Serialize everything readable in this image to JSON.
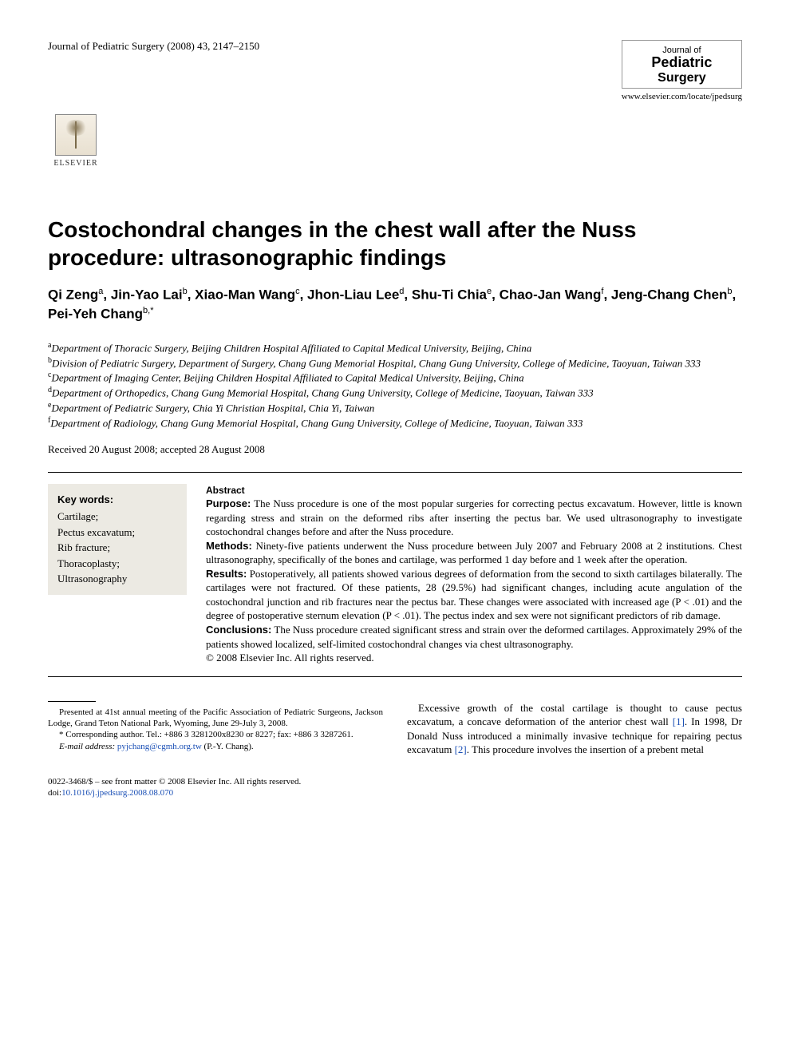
{
  "header": {
    "running_head": "Journal of Pediatric Surgery (2008) 43, 2147–2150",
    "journal_block": {
      "line1": "Journal of",
      "line2": "Pediatric",
      "line3": "Surgery"
    },
    "publisher": "ELSEVIER",
    "journal_url": "www.elsevier.com/locate/jpedsurg"
  },
  "title": "Costochondral changes in the chest wall after the Nuss procedure: ultrasonographic findings",
  "authors_html": "Qi Zeng<sup>a</sup>, Jin-Yao Lai<sup>b</sup>, Xiao-Man Wang<sup>c</sup>, Jhon-Liau Lee<sup>d</sup>, Shu-Ti Chia<sup>e</sup>, Chao-Jan Wang<sup>f</sup>, Jeng-Chang Chen<sup>b</sup>, Pei-Yeh Chang<sup>b,*</sup>",
  "affiliations": [
    {
      "sup": "a",
      "text": "Department of Thoracic Surgery, Beijing Children Hospital Affiliated to Capital Medical University, Beijing, China"
    },
    {
      "sup": "b",
      "text": "Division of Pediatric Surgery, Department of Surgery, Chang Gung Memorial Hospital, Chang Gung University, College of Medicine, Taoyuan, Taiwan 333"
    },
    {
      "sup": "c",
      "text": "Department of Imaging Center, Beijing Children Hospital Affiliated to Capital Medical University, Beijing, China"
    },
    {
      "sup": "d",
      "text": "Department of Orthopedics, Chang Gung Memorial Hospital, Chang Gung University, College of Medicine, Taoyuan, Taiwan 333"
    },
    {
      "sup": "e",
      "text": "Department of Pediatric Surgery, Chia Yi Christian Hospital, Chia Yi, Taiwan"
    },
    {
      "sup": "f",
      "text": "Department of Radiology, Chang Gung Memorial Hospital, Chang Gung University, College of Medicine, Taoyuan, Taiwan 333"
    }
  ],
  "dates": "Received 20 August 2008; accepted 28 August 2008",
  "keywords": {
    "heading": "Key words:",
    "items": [
      "Cartilage;",
      "Pectus excavatum;",
      "Rib fracture;",
      "Thoracoplasty;",
      "Ultrasonography"
    ]
  },
  "abstract": {
    "heading": "Abstract",
    "sections": [
      {
        "label": "Purpose:",
        "text": "The Nuss procedure is one of the most popular surgeries for correcting pectus excavatum. However, little is known regarding stress and strain on the deformed ribs after inserting the pectus bar. We used ultrasonography to investigate costochondral changes before and after the Nuss procedure."
      },
      {
        "label": "Methods:",
        "text": "Ninety-five patients underwent the Nuss procedure between July 2007 and February 2008 at 2 institutions. Chest ultrasonography, specifically of the bones and cartilage, was performed 1 day before and 1 week after the operation."
      },
      {
        "label": "Results:",
        "text": "Postoperatively, all patients showed various degrees of deformation from the second to sixth cartilages bilaterally. The cartilages were not fractured. Of these patients, 28 (29.5%) had significant changes, including acute angulation of the costochondral junction and rib fractures near the pectus bar. These changes were associated with increased age (P < .01) and the degree of postoperative sternum elevation (P < .01). The pectus index and sex were not significant predictors of rib damage."
      },
      {
        "label": "Conclusions:",
        "text": "The Nuss procedure created significant stress and strain over the deformed cartilages. Approximately 29% of the patients showed localized, self-limited costochondral changes via chest ultrasonography."
      }
    ],
    "copyright": "© 2008 Elsevier Inc. All rights reserved."
  },
  "footnotes": {
    "presented": "Presented at 41st annual meeting of the Pacific Association of Pediatric Surgeons, Jackson Lodge, Grand Teton National Park, Wyoming, June 29-July 3, 2008.",
    "corresponding": "* Corresponding author. Tel.: +886 3 3281200x8230 or 8227; fax: +886 3 3287261.",
    "email_label": "E-mail address:",
    "email": "pyjchang@cgmh.org.tw",
    "email_person": "(P.-Y. Chang)."
  },
  "body_intro": "Excessive growth of the costal cartilage is thought to cause pectus excavatum, a concave deformation of the anterior chest wall [1]. In 1998, Dr Donald Nuss introduced a minimally invasive technique for repairing pectus excavatum [2]. This procedure involves the insertion of a prebent metal",
  "body_refs": {
    "r1": "[1]",
    "r2": "[2]"
  },
  "footer": {
    "issn_line": "0022-3468/$ – see front matter © 2008 Elsevier Inc. All rights reserved.",
    "doi_label": "doi:",
    "doi": "10.1016/j.jpedsurg.2008.08.070"
  },
  "colors": {
    "text": "#000000",
    "link": "#1a4fb5",
    "keywords_bg": "#eceae3",
    "background": "#ffffff"
  },
  "typography": {
    "title_fontsize": 28,
    "authors_fontsize": 17,
    "body_fontsize": 13,
    "footnote_fontsize": 11
  }
}
